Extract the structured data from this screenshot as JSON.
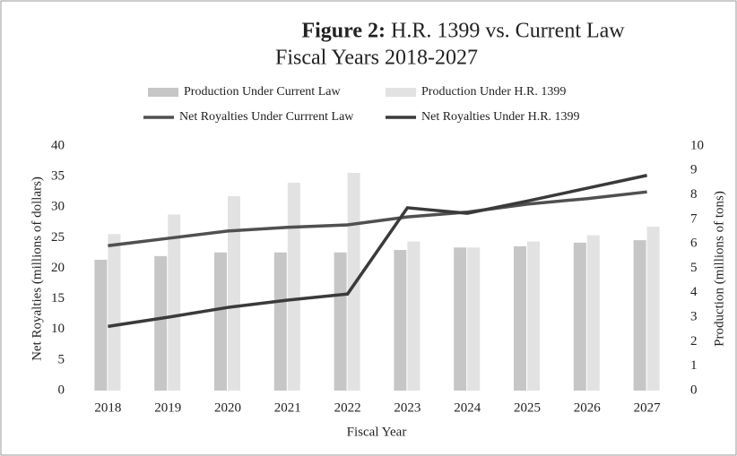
{
  "chart_data": {
    "type": "bar-line",
    "title_label": "Figure 2:",
    "title": "H.R. 1399 vs. Current Law",
    "subtitle": "Fiscal Years 2018-2027",
    "x_label": "Fiscal Year",
    "y_label": "Net Royalties (millions of dollars)",
    "y2_label": "Production (millions of tons)",
    "categories": [
      "2018",
      "2019",
      "2020",
      "2021",
      "2022",
      "2023",
      "2024",
      "2025",
      "2026",
      "2027"
    ],
    "series": [
      {
        "name": "Production Under Current Law",
        "type": "bar",
        "axis": "y2",
        "color": "#c6c6c6",
        "values": [
          5.35,
          5.5,
          5.65,
          5.65,
          5.65,
          5.75,
          5.85,
          5.9,
          6.05,
          6.15
        ]
      },
      {
        "name": "Production Under H.R. 1399",
        "type": "bar",
        "axis": "y2",
        "color": "#e2e2e2",
        "values": [
          6.4,
          7.2,
          7.95,
          8.5,
          8.9,
          6.1,
          5.85,
          6.1,
          6.35,
          6.7
        ]
      },
      {
        "name": "Net Royalties Under Currrent Law",
        "type": "line",
        "axis": "y",
        "color": "#505050",
        "values": [
          23.7,
          24.9,
          26.1,
          26.7,
          27.1,
          28.4,
          29.2,
          30.5,
          31.4,
          32.5
        ]
      },
      {
        "name": "Net Royalties Under H.R. 1399",
        "type": "line",
        "axis": "y",
        "color": "#3a3a3a",
        "values": [
          10.5,
          12,
          13.6,
          14.8,
          15.8,
          29.9,
          29,
          31,
          33.1,
          35.2
        ]
      }
    ],
    "ylim": [
      0,
      40
    ],
    "yticks": [
      0,
      5,
      10,
      15,
      20,
      25,
      30,
      35,
      40
    ],
    "y2lim": [
      0,
      10
    ],
    "y2ticks": [
      0,
      1,
      2,
      3,
      4,
      5,
      6,
      7,
      8,
      9,
      10
    ]
  }
}
